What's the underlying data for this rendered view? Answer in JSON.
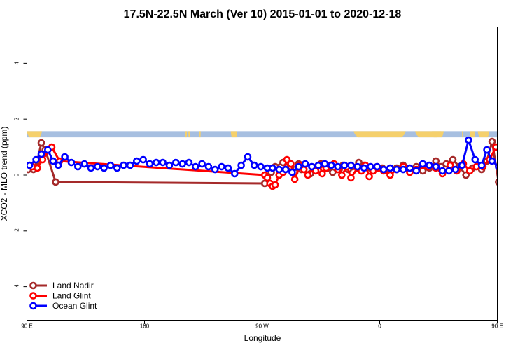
{
  "chart_data": {
    "type": "line",
    "title": "17.5N-22.5N March (Ver 10)   2015-01-01 to 2020-12-18",
    "xlabel": "Longitude",
    "ylabel": "XCO2 - MLO trend (ppm)",
    "xlim": [
      90,
      450
    ],
    "ylim": [
      -5.2,
      5.3
    ],
    "x_ticks": [
      {
        "value": 90,
        "label": "90 E"
      },
      {
        "value": 180,
        "label": "180"
      },
      {
        "value": 270,
        "label": "90 W"
      },
      {
        "value": 360,
        "label": "0"
      },
      {
        "value": 450,
        "label": "90 E"
      },
      {
        "value": 540,
        "label": "180"
      }
    ],
    "y_ticks": [
      {
        "value": -4,
        "label": "-4"
      },
      {
        "value": -2,
        "label": "-2"
      },
      {
        "value": 0,
        "label": "0"
      },
      {
        "value": 2,
        "label": "2"
      },
      {
        "value": 4,
        "label": "4"
      }
    ],
    "grid": false,
    "legend_position": "bottom-left",
    "land_strip": {
      "y_range": [
        1.35,
        1.57
      ],
      "ocean_color": "#a7bfe0",
      "land_color": "#f5d06c",
      "land_segments": [
        [
          90,
          101.5
        ],
        [
          211,
          212.5
        ],
        [
          213.5,
          215
        ],
        [
          222,
          223
        ],
        [
          246,
          251
        ],
        [
          340,
          380
        ],
        [
          387,
          407
        ],
        [
          400,
          409
        ],
        [
          423,
          424
        ],
        [
          429,
          433
        ],
        [
          435,
          444
        ]
      ]
    },
    "series": [
      {
        "name": "Land Nadir",
        "color": "#a52a2a",
        "x": [
          91,
          95,
          98,
          101,
          104,
          112,
          272,
          277,
          280,
          286,
          292,
          295,
          298,
          300,
          307,
          312,
          315,
          320,
          324,
          329,
          332,
          336,
          339,
          344,
          348,
          353,
          358,
          362,
          367,
          373,
          378,
          383,
          388,
          393,
          398,
          403,
          407,
          411,
          416,
          421,
          426,
          431,
          438,
          442,
          446,
          451
        ],
        "y": [
          0.2,
          0.2,
          0.5,
          1.15,
          0.9,
          -0.25,
          -0.3,
          0.1,
          0.3,
          0.45,
          0.3,
          0.1,
          0.4,
          0.2,
          0.05,
          0.3,
          0.4,
          0.25,
          0.1,
          0.2,
          0.35,
          0.2,
          0.3,
          0.45,
          0.35,
          0.25,
          0.3,
          0.25,
          0.2,
          0.25,
          0.35,
          0.2,
          0.3,
          0.15,
          0.25,
          0.5,
          0.3,
          0.4,
          0.55,
          0.3,
          0.0,
          0.25,
          0.2,
          0.5,
          1.2,
          -0.25
        ]
      },
      {
        "name": "Land Glint",
        "color": "#ff0000",
        "x": [
          94,
          98,
          102,
          109,
          115,
          272,
          274,
          276,
          278,
          280,
          283,
          286,
          289,
          292,
          295,
          299,
          302,
          305,
          309,
          311,
          314,
          316,
          319,
          322,
          325,
          328,
          331,
          335,
          338,
          343,
          346,
          349,
          352,
          355,
          359,
          363,
          368,
          373,
          378,
          383,
          388,
          393,
          397,
          403,
          408,
          414,
          419,
          424,
          429,
          434,
          439,
          444,
          449
        ],
        "y": [
          0.3,
          0.25,
          0.55,
          1.0,
          0.5,
          0.0,
          -0.1,
          -0.3,
          -0.4,
          -0.35,
          0.0,
          0.1,
          0.55,
          0.4,
          -0.15,
          0.35,
          0.2,
          0.0,
          0.25,
          0.15,
          0.35,
          0.05,
          0.25,
          0.35,
          0.4,
          0.2,
          0.0,
          0.3,
          -0.1,
          0.25,
          0.15,
          0.35,
          -0.05,
          0.15,
          0.25,
          0.15,
          0.0,
          0.2,
          0.3,
          0.1,
          0.2,
          0.35,
          0.3,
          0.25,
          0.05,
          0.35,
          0.15,
          0.4,
          0.15,
          0.3,
          0.3,
          0.55,
          1.0
        ]
      },
      {
        "name": "Ocean Glint",
        "color": "#0000ff",
        "x": [
          92,
          97,
          101,
          106,
          110,
          114,
          119,
          124,
          129,
          134,
          139,
          144,
          149,
          154,
          159,
          164,
          169,
          174,
          179,
          184,
          189,
          194,
          199,
          204,
          209,
          214,
          219,
          224,
          229,
          234,
          239,
          244,
          249,
          254,
          259,
          264,
          269,
          274,
          278,
          283,
          288,
          293,
          298,
          303,
          308,
          313,
          318,
          323,
          328,
          333,
          338,
          343,
          348,
          353,
          358,
          363,
          368,
          373,
          378,
          383,
          388,
          393,
          398,
          403,
          408,
          413,
          418,
          423,
          428,
          433,
          438,
          442,
          446,
          451
        ],
        "y": [
          0.35,
          0.55,
          0.75,
          0.9,
          0.5,
          0.35,
          0.65,
          0.45,
          0.3,
          0.4,
          0.25,
          0.3,
          0.25,
          0.35,
          0.25,
          0.35,
          0.35,
          0.5,
          0.55,
          0.4,
          0.45,
          0.45,
          0.35,
          0.45,
          0.4,
          0.45,
          0.3,
          0.4,
          0.3,
          0.2,
          0.3,
          0.25,
          0.05,
          0.35,
          0.65,
          0.35,
          0.3,
          0.25,
          0.25,
          0.2,
          0.2,
          0.1,
          0.3,
          0.4,
          0.3,
          0.35,
          0.4,
          0.35,
          0.3,
          0.35,
          0.35,
          0.3,
          0.25,
          0.3,
          0.3,
          0.2,
          0.25,
          0.2,
          0.2,
          0.25,
          0.15,
          0.4,
          0.35,
          0.3,
          0.15,
          0.15,
          0.2,
          0.35,
          1.25,
          0.55,
          0.35,
          0.9,
          0.5,
          0.3
        ]
      }
    ]
  }
}
